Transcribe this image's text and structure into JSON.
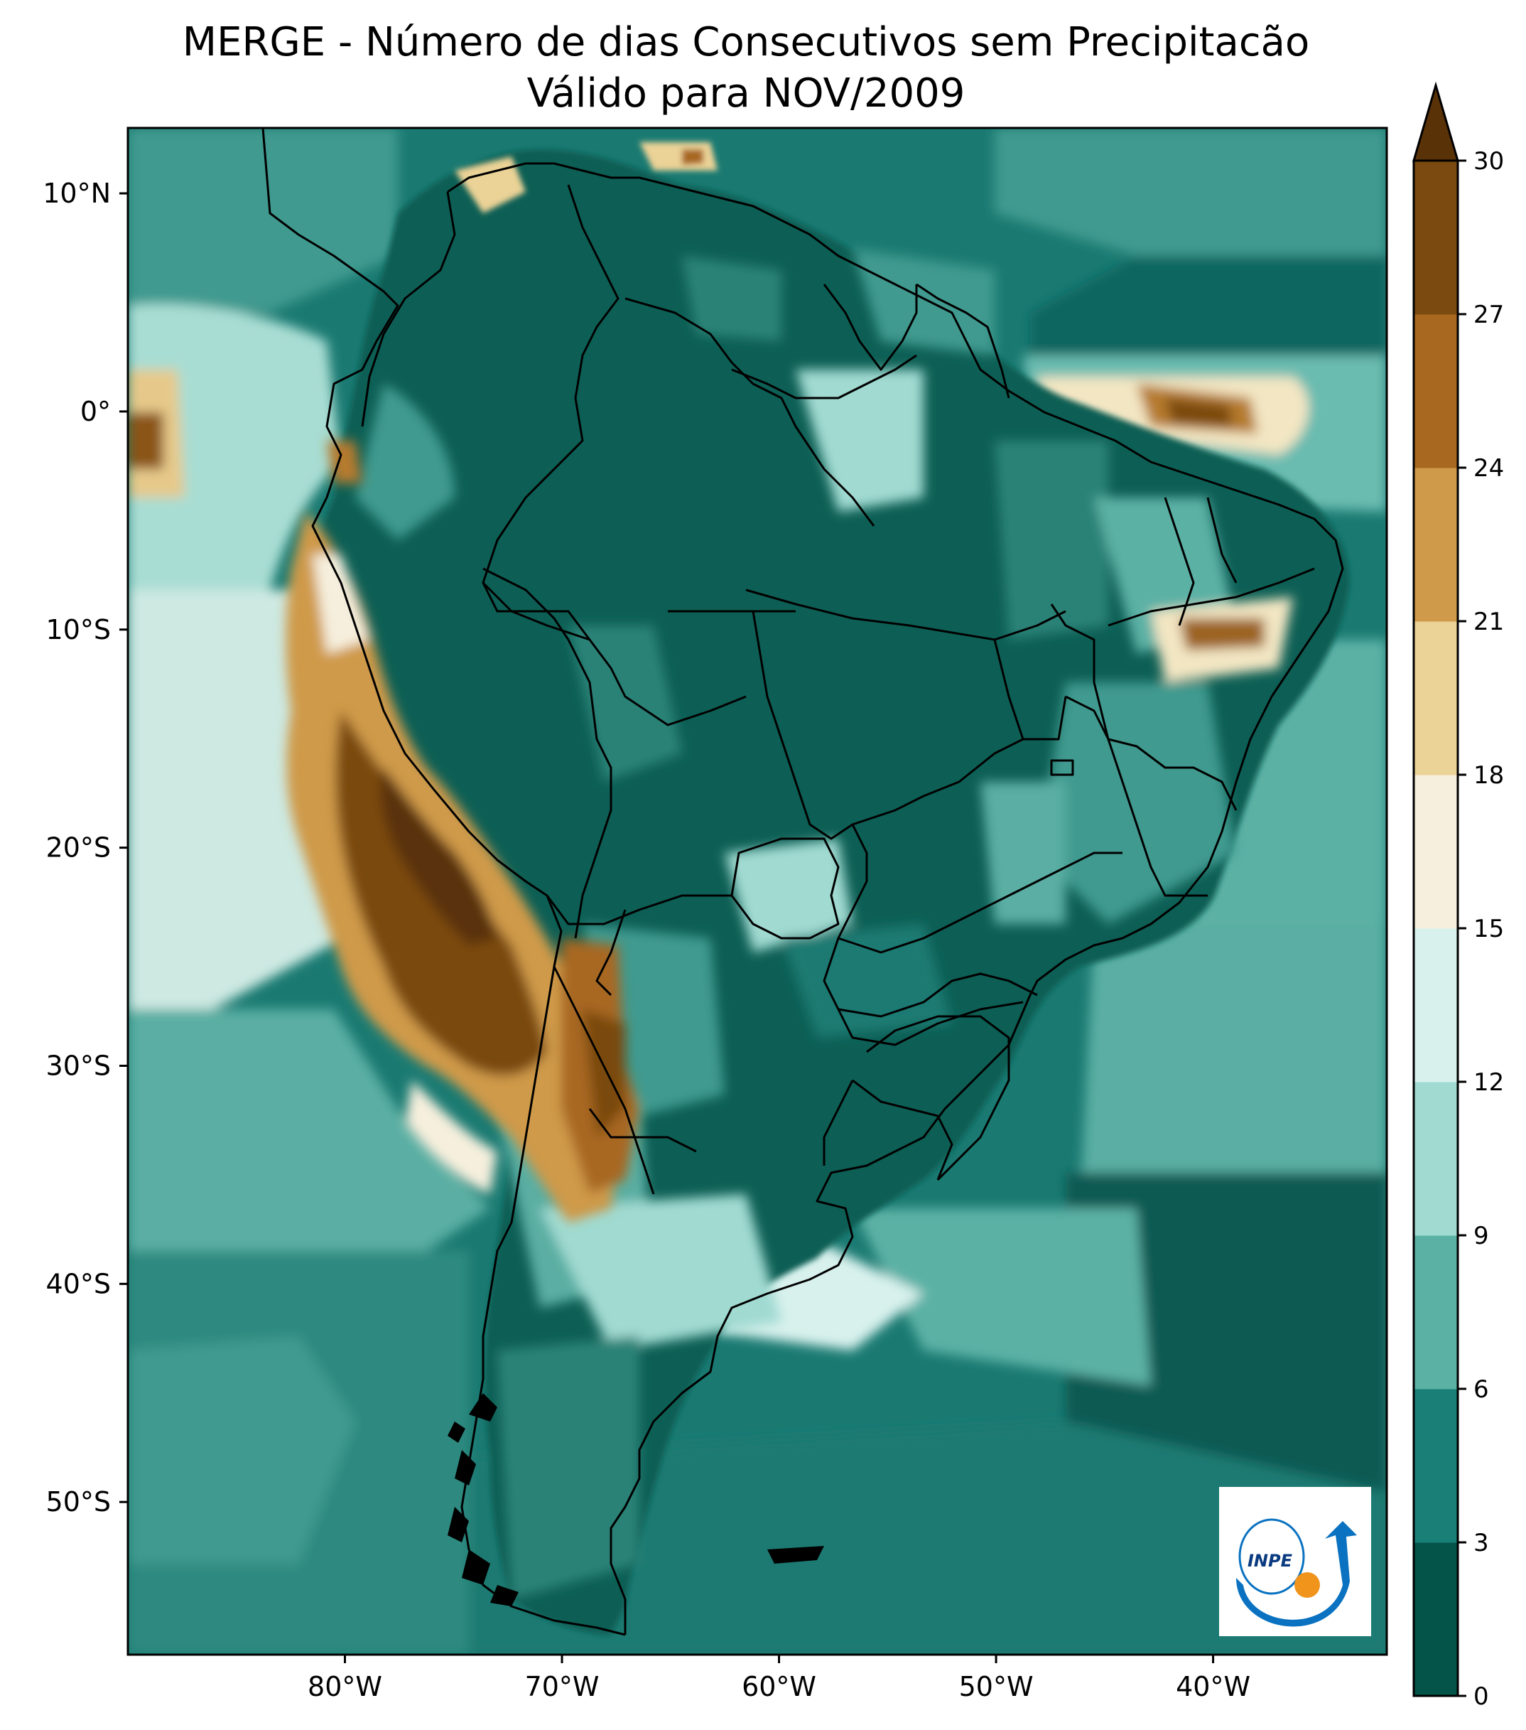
{
  "title": {
    "line1": "MERGE - Número de dias Consecutivos sem Precipitacão",
    "line2": "Válido para NOV/2009"
  },
  "map": {
    "lat_range": [
      -57,
      13
    ],
    "lon_range": [
      -90,
      -32
    ],
    "x_ticks": [
      {
        "lon": -80,
        "label": "80°W"
      },
      {
        "lon": -70,
        "label": "70°W"
      },
      {
        "lon": -60,
        "label": "60°W"
      },
      {
        "lon": -50,
        "label": "50°W"
      },
      {
        "lon": -40,
        "label": "40°W"
      }
    ],
    "y_ticks": [
      {
        "lat": 10,
        "label": "10°N"
      },
      {
        "lat": 0,
        "label": "0°"
      },
      {
        "lat": -10,
        "label": "10°S"
      },
      {
        "lat": -20,
        "label": "20°S"
      },
      {
        "lat": -30,
        "label": "30°S"
      },
      {
        "lat": -40,
        "label": "40°S"
      },
      {
        "lat": -50,
        "label": "50°S"
      }
    ],
    "background_color": "#1a7a72"
  },
  "colorbar": {
    "levels": [
      "0",
      "3",
      "6",
      "9",
      "12",
      "15",
      "18",
      "21",
      "24",
      "27",
      "30"
    ],
    "colors": [
      "#04544a",
      "#1a7f77",
      "#5cb1a5",
      "#a0dad1",
      "#d8f1ed",
      "#f6efdd",
      "#ebd296",
      "#cf9a4a",
      "#a86820",
      "#7a4a10"
    ],
    "extend_color": "#5a3208",
    "extend": "max"
  },
  "logo": {
    "text": "INPE",
    "colors": {
      "blue": "#0a72c0",
      "orange": "#f0941c"
    }
  }
}
